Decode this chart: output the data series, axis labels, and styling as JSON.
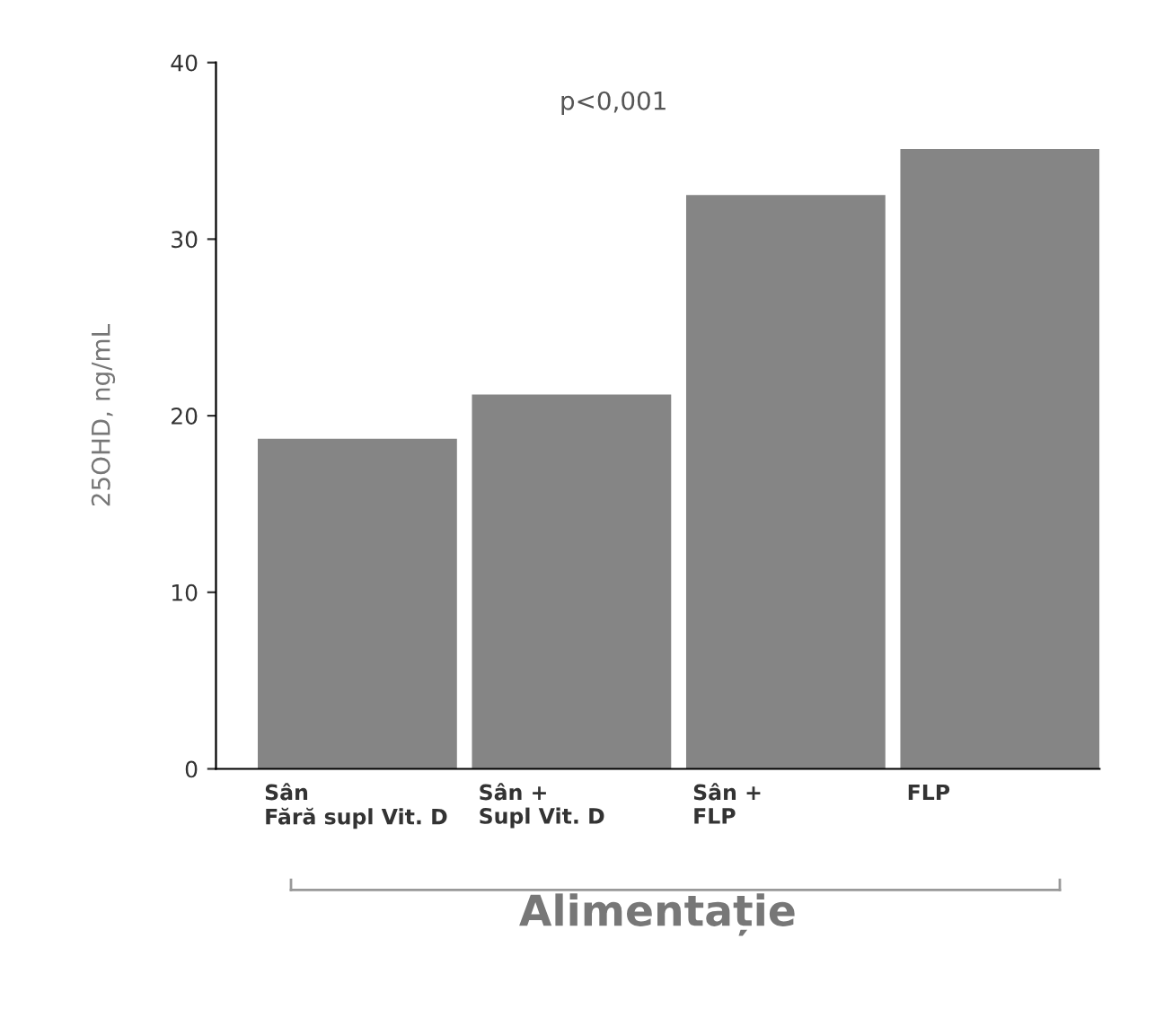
{
  "chart_data": {
    "type": "bar",
    "categories": [
      "Sân\nFără supl Vit. D",
      "Sân +\nSupl Vit. D",
      "Sân +\nFLP",
      "FLP"
    ],
    "values": [
      18.7,
      21.2,
      32.5,
      35.1
    ],
    "color": "#858585",
    "xlabel": "Alimentație",
    "ylabel": "25OHD, ng/mL",
    "ylim": [
      0,
      40
    ],
    "yticks": [
      0,
      10,
      20,
      30,
      40
    ],
    "grid": false,
    "annotations": [
      "p<0,001"
    ]
  }
}
